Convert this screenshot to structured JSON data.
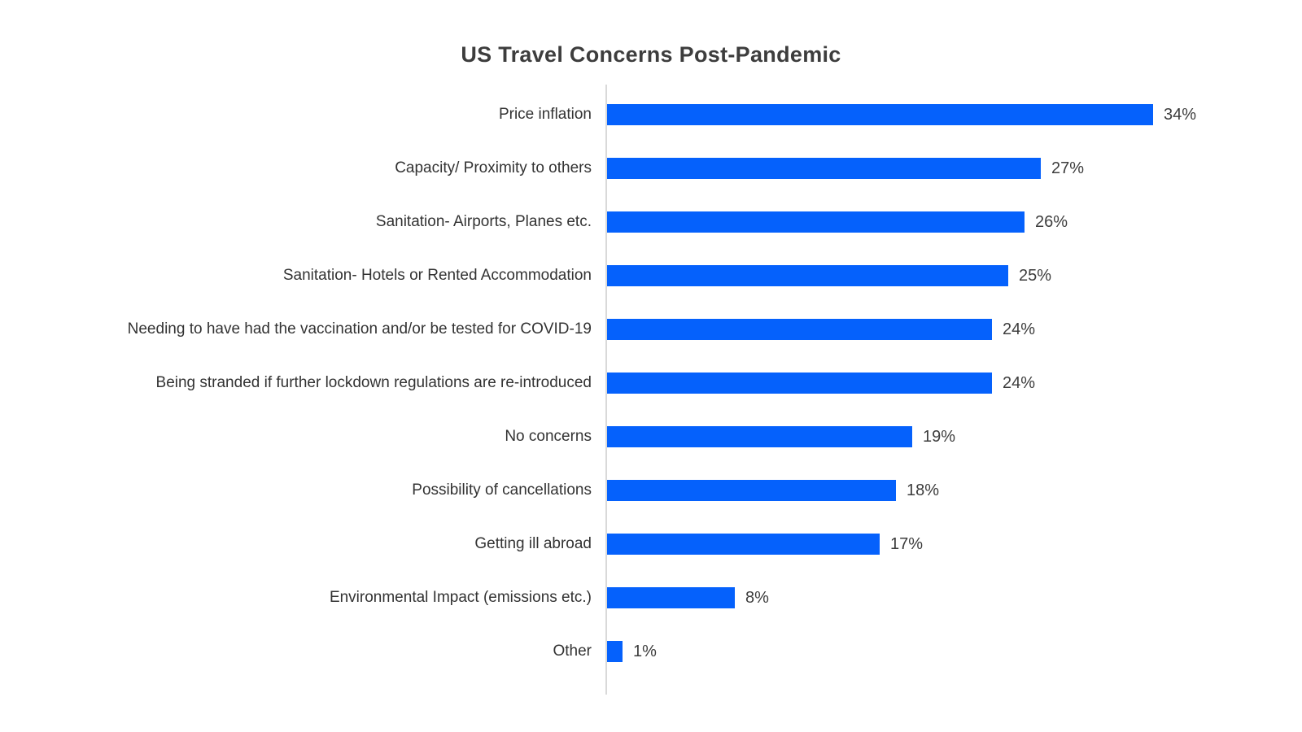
{
  "title": "US Travel Concerns Post-Pandemic",
  "chart_data": {
    "type": "bar",
    "orientation": "horizontal",
    "title": "US Travel Concerns Post-Pandemic",
    "categories": [
      "Price inflation",
      "Capacity/ Proximity to others",
      "Sanitation- Airports, Planes etc.",
      "Sanitation- Hotels or Rented Accommodation",
      "Needing to have had the vaccination and/or be tested for COVID-19",
      "Being stranded if further lockdown regulations are re-introduced",
      "No concerns",
      "Possibility of cancellations",
      "Getting ill abroad",
      "Environmental Impact (emissions etc.)",
      "Other"
    ],
    "values": [
      34,
      27,
      26,
      25,
      24,
      24,
      19,
      18,
      17,
      8,
      1
    ],
    "value_labels": [
      "34%",
      "27%",
      "26%",
      "25%",
      "24%",
      "24%",
      "19%",
      "18%",
      "17%",
      "8%",
      "1%"
    ],
    "unit": "%",
    "xlim": [
      0,
      35
    ],
    "grid": "off",
    "legend": "none",
    "bar_color": "#0561fc",
    "axis_line_color": "#d9d9d9",
    "title_color": "#3d3d3d",
    "label_color": "#333333",
    "value_color": "#3d3d3d"
  }
}
